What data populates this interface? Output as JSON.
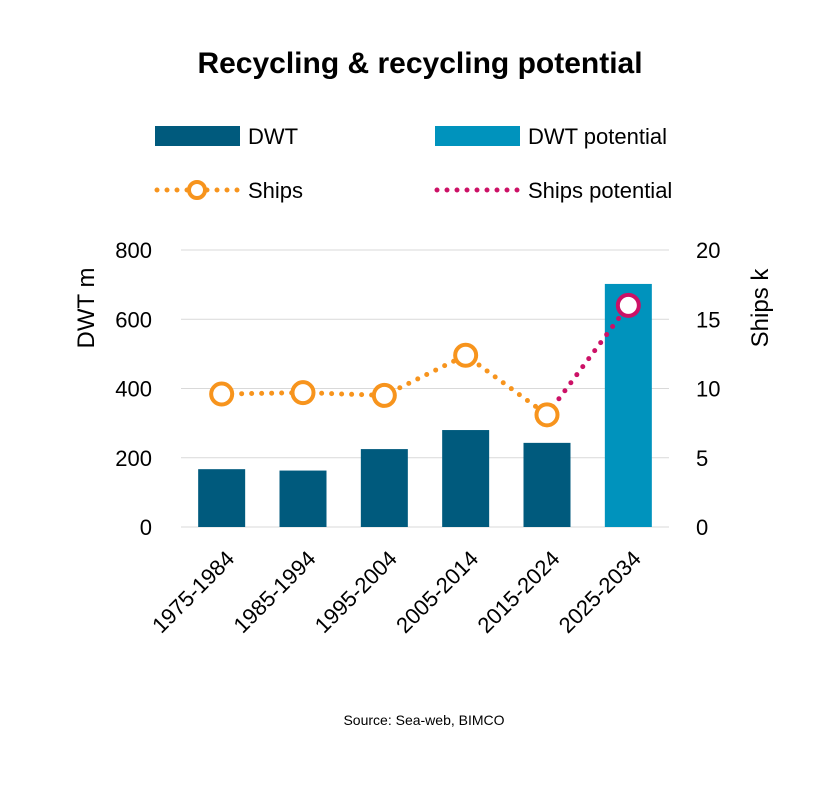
{
  "chart_data": {
    "type": "bar+line",
    "title": "Recycling & recycling potential",
    "categories": [
      "1975-1984",
      "1985-1994",
      "1995-2004",
      "2005-2014",
      "2015-2024",
      "2025-2034"
    ],
    "series": [
      {
        "name": "DWT",
        "kind": "bar",
        "axis": "left",
        "color": "#005A7D",
        "values": [
          167,
          163,
          225,
          280,
          243,
          null
        ]
      },
      {
        "name": "DWT potential",
        "kind": "bar",
        "axis": "left",
        "color": "#0093BD",
        "values": [
          null,
          null,
          null,
          null,
          null,
          702
        ]
      },
      {
        "name": "Ships",
        "kind": "line-dotted-marker",
        "axis": "right",
        "color": "#F7941D",
        "values": [
          9.6,
          9.7,
          9.5,
          12.4,
          8.1,
          null
        ]
      },
      {
        "name": "Ships potential",
        "kind": "line-dotted-marker",
        "axis": "right",
        "color": "#CC1166",
        "values": [
          null,
          null,
          null,
          null,
          8.1,
          16.0
        ]
      }
    ],
    "y_left": {
      "label": "DWT m",
      "ticks": [
        0,
        200,
        400,
        600,
        800
      ],
      "range": [
        0,
        800
      ]
    },
    "y_right": {
      "label": "Ships k",
      "ticks": [
        0,
        5,
        10,
        15,
        20
      ],
      "range": [
        0,
        20
      ]
    },
    "source": "Source: Sea-web, BIMCO"
  }
}
